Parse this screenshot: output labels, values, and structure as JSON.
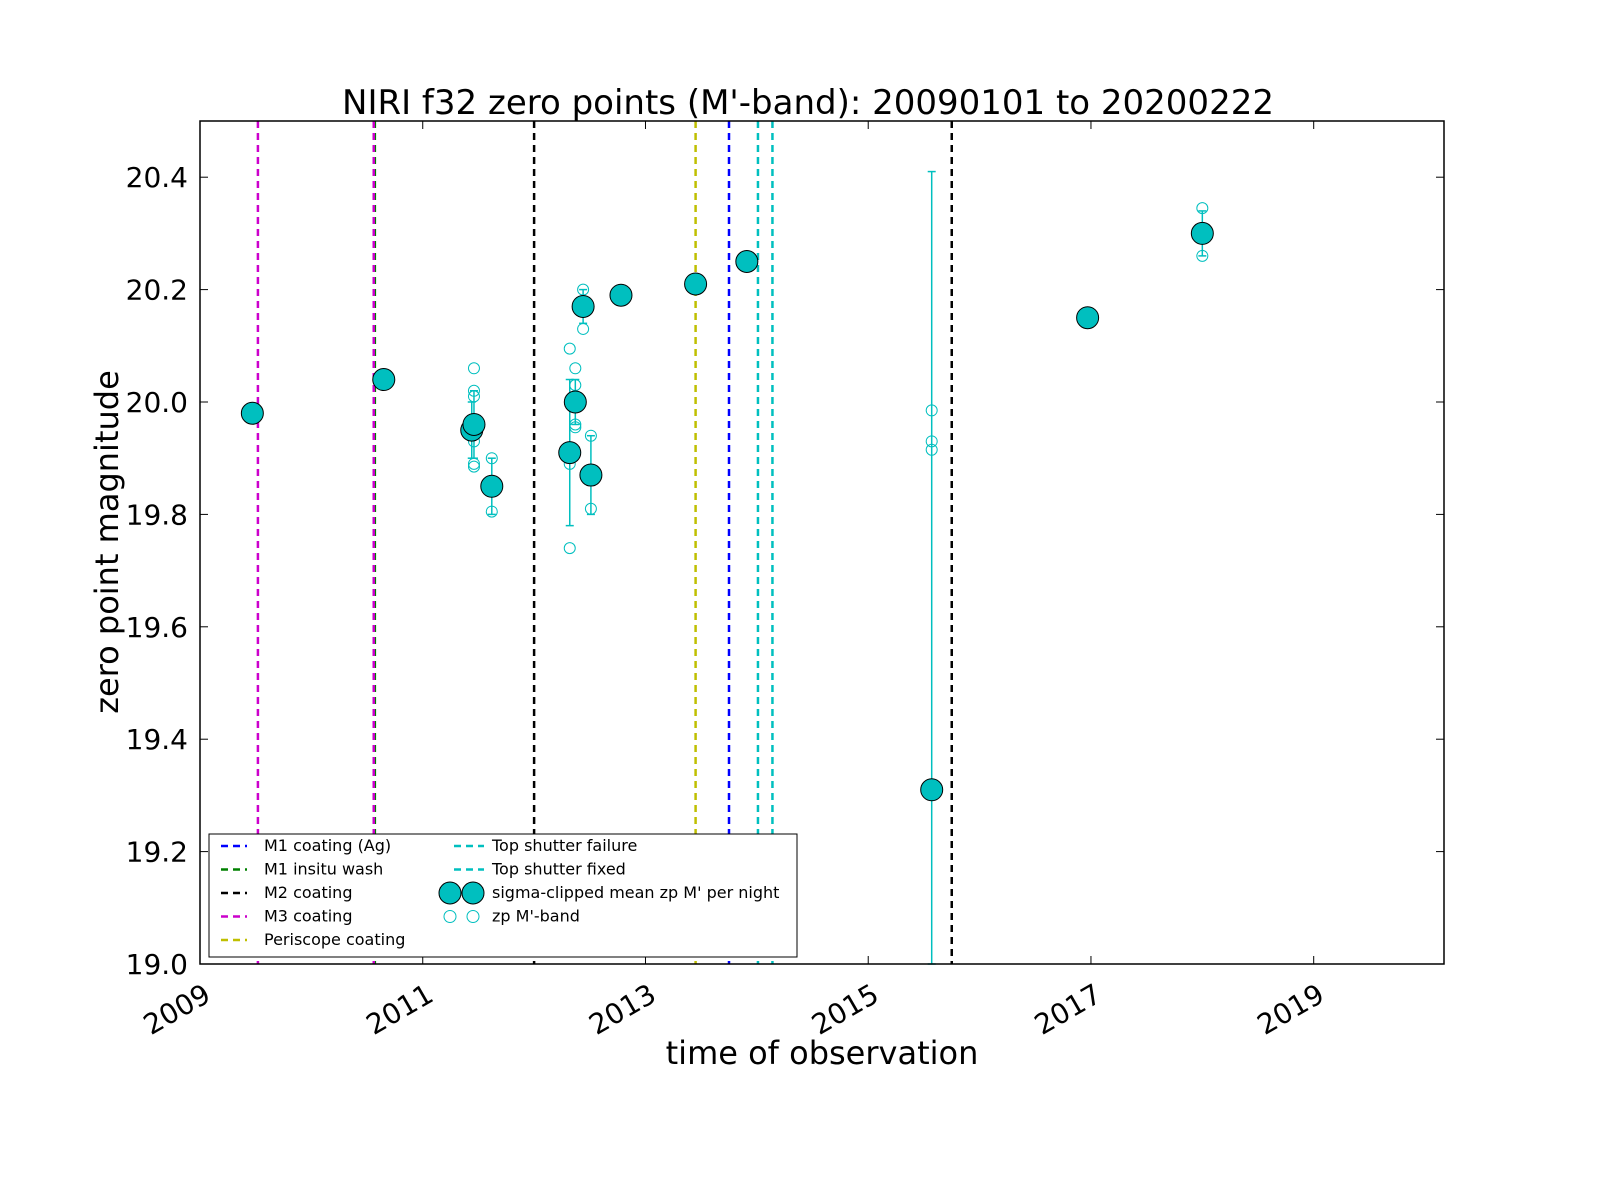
{
  "chart_data": {
    "type": "scatter",
    "title": "NIRI f32 zero points (M'-band): 20090101 to 20200222",
    "xlabel": "time of observation",
    "ylabel": "zero point magnitude",
    "xlim": [
      2009.0,
      2020.17
    ],
    "ylim": [
      19.0,
      20.5
    ],
    "xticks": [
      2009,
      2011,
      2013,
      2015,
      2017,
      2019
    ],
    "xtick_labels": [
      "2009",
      "2011",
      "2013",
      "2015",
      "2017",
      "2019"
    ],
    "yticks": [
      19.0,
      19.2,
      19.4,
      19.6,
      19.8,
      20.0,
      20.2,
      20.4
    ],
    "ytick_labels": [
      "19.0",
      "19.2",
      "19.4",
      "19.6",
      "19.8",
      "20.0",
      "20.2",
      "20.4"
    ],
    "grid": false,
    "legend_position": "bottom-left",
    "events": [
      {
        "name": "M1 coating (Ag)",
        "color": "#0000ff",
        "x": [
          2013.75
        ]
      },
      {
        "name": "M1 insitu wash",
        "color": "#008000",
        "x": [
          2010.57
        ]
      },
      {
        "name": "M2 coating",
        "color": "#000000",
        "x": [
          2012.0,
          2015.75
        ]
      },
      {
        "name": "M3 coating",
        "color": "#cc00cc",
        "x": [
          2009.52,
          2010.56
        ]
      },
      {
        "name": "Periscope coating",
        "color": "#bfbf00",
        "x": [
          2013.45
        ]
      },
      {
        "name": "Top shutter failure",
        "color": "#00bfbf",
        "x": [
          2014.01
        ]
      },
      {
        "name": "Top shutter fixed",
        "color": "#00bfbf",
        "x": [
          2014.14
        ]
      }
    ],
    "mean_series": {
      "name": "sigma-clipped mean zp M' per night",
      "color": "#00bfbf",
      "points": [
        {
          "x": 2009.47,
          "y": 19.98
        },
        {
          "x": 2010.65,
          "y": 20.04
        },
        {
          "x": 2011.44,
          "y": 19.95,
          "yerr": 0.05
        },
        {
          "x": 2011.46,
          "y": 19.96,
          "yerr": 0.06
        },
        {
          "x": 2011.62,
          "y": 19.85,
          "yerr": 0.05
        },
        {
          "x": 2012.32,
          "y": 19.91,
          "yerr": 0.13
        },
        {
          "x": 2012.37,
          "y": 20.0,
          "yerr": 0.04
        },
        {
          "x": 2012.44,
          "y": 20.17,
          "yerr": 0.03
        },
        {
          "x": 2012.51,
          "y": 19.87,
          "yerr": 0.07
        },
        {
          "x": 2012.78,
          "y": 20.19
        },
        {
          "x": 2013.45,
          "y": 20.21
        },
        {
          "x": 2013.91,
          "y": 20.25
        },
        {
          "x": 2015.57,
          "y": 19.31,
          "yerr": 1.1
        },
        {
          "x": 2016.97,
          "y": 20.15
        },
        {
          "x": 2018.0,
          "y": 20.3,
          "yerr": 0.04
        }
      ]
    },
    "raw_series": {
      "name": "zp M'-band",
      "color": "#00bfbf",
      "points": [
        {
          "x": 2011.46,
          "y": 20.06
        },
        {
          "x": 2011.46,
          "y": 20.02
        },
        {
          "x": 2011.46,
          "y": 20.01
        },
        {
          "x": 2011.46,
          "y": 19.93
        },
        {
          "x": 2011.46,
          "y": 19.89
        },
        {
          "x": 2011.46,
          "y": 19.885
        },
        {
          "x": 2011.62,
          "y": 19.9
        },
        {
          "x": 2011.62,
          "y": 19.805
        },
        {
          "x": 2012.32,
          "y": 20.095
        },
        {
          "x": 2012.32,
          "y": 19.89
        },
        {
          "x": 2012.32,
          "y": 19.74
        },
        {
          "x": 2012.37,
          "y": 20.06
        },
        {
          "x": 2012.37,
          "y": 20.03
        },
        {
          "x": 2012.37,
          "y": 19.96
        },
        {
          "x": 2012.37,
          "y": 19.955
        },
        {
          "x": 2012.44,
          "y": 20.2
        },
        {
          "x": 2012.44,
          "y": 20.13
        },
        {
          "x": 2012.51,
          "y": 19.94
        },
        {
          "x": 2012.51,
          "y": 19.81
        },
        {
          "x": 2015.57,
          "y": 19.985
        },
        {
          "x": 2015.57,
          "y": 19.93
        },
        {
          "x": 2015.57,
          "y": 19.915
        },
        {
          "x": 2018.0,
          "y": 20.345
        },
        {
          "x": 2018.0,
          "y": 20.26
        }
      ]
    }
  }
}
